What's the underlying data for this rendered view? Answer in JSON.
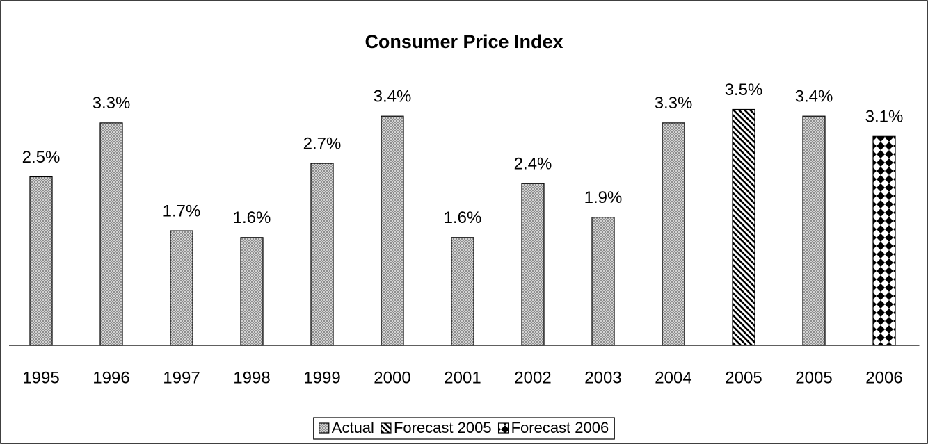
{
  "chart_data": {
    "type": "bar",
    "title": "Consumer Price Index",
    "categories": [
      "1995",
      "1996",
      "1997",
      "1998",
      "1999",
      "2000",
      "2001",
      "2002",
      "2003",
      "2004",
      "2005",
      "2005",
      "2006"
    ],
    "series": [
      {
        "name": "Actual",
        "pattern": "crosshatch",
        "color": "#808080",
        "values": [
          2.5,
          3.3,
          1.7,
          1.6,
          2.7,
          3.4,
          1.6,
          2.4,
          1.9,
          3.3,
          null,
          3.4,
          null
        ],
        "value_labels": [
          "2.5%",
          "3.3%",
          "1.7%",
          "1.6%",
          "2.7%",
          "3.4%",
          "1.6%",
          "2.4%",
          "1.9%",
          "3.3%",
          null,
          "3.4%",
          null
        ]
      },
      {
        "name": "Forecast 2005",
        "pattern": "diagonal",
        "color": "#000000",
        "values": [
          null,
          null,
          null,
          null,
          null,
          null,
          null,
          null,
          null,
          null,
          3.5,
          null,
          null
        ],
        "value_labels": [
          null,
          null,
          null,
          null,
          null,
          null,
          null,
          null,
          null,
          null,
          "3.5%",
          null,
          null
        ]
      },
      {
        "name": "Forecast 2006",
        "pattern": "checker",
        "color": "#000000",
        "values": [
          null,
          null,
          null,
          null,
          null,
          null,
          null,
          null,
          null,
          null,
          null,
          null,
          3.1
        ],
        "value_labels": [
          null,
          null,
          null,
          null,
          null,
          null,
          null,
          null,
          null,
          null,
          null,
          null,
          "3.1%"
        ]
      }
    ],
    "ylim": [
      0,
      4
    ],
    "legend": "bottom"
  }
}
